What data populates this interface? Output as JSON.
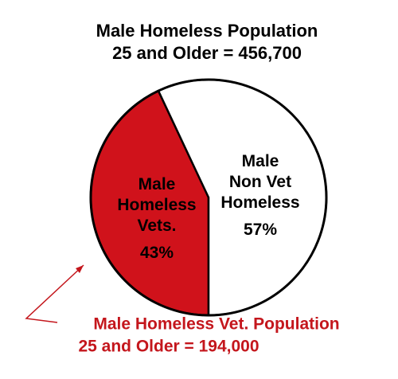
{
  "chart_data": {
    "type": "pie",
    "title": [
      "Male Homeless Population",
      "25 and Older = 456,700"
    ],
    "categories": [
      [
        "Male",
        "Homeless",
        "Vets."
      ],
      [
        "Male",
        "Non Vet",
        "Homeless"
      ]
    ],
    "values": [
      43,
      57
    ],
    "value_labels": [
      "43%",
      "57%"
    ],
    "colors": [
      "#d0121b",
      "#ffffff"
    ],
    "annotation": [
      "Male Homeless Vet. Population",
      "25 and Older = 194,000"
    ],
    "annotation_color": "#c4161c"
  }
}
